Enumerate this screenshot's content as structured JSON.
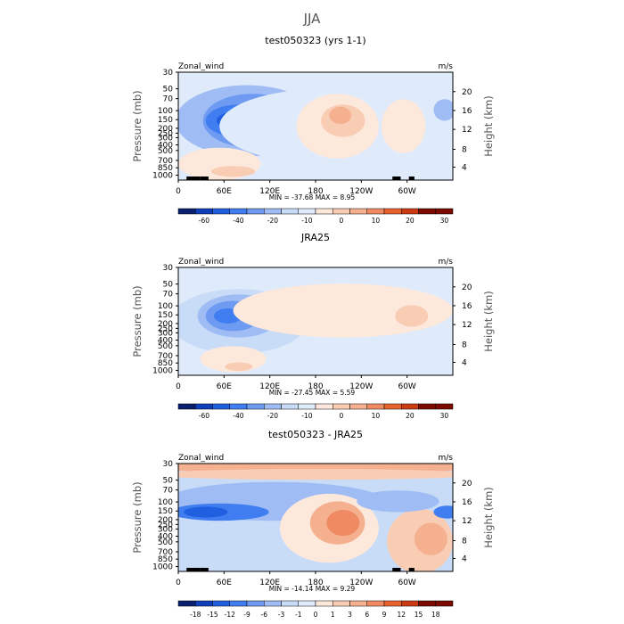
{
  "figure_title": "JJA",
  "colors": {
    "scale": [
      "#08206e",
      "#0f3fb8",
      "#1f5fe0",
      "#3f7df0",
      "#6e9af2",
      "#9fbdf4",
      "#c8dcf8",
      "#dfeafb",
      "#fde8dc",
      "#f9cdb4",
      "#f5b090",
      "#f08a62",
      "#e8602c",
      "#cc3a12",
      "#7a0a00"
    ]
  },
  "chart_data": [
    {
      "type": "contour",
      "title": "test050323 (yrs 1-1)",
      "left_label": "Zonal_wind",
      "right_label": "m/s",
      "ylabel": "Pressure (mb)",
      "ylabel_right": "Height (km)",
      "pressure_ticks": [
        "30",
        "50",
        "70",
        "100",
        "150",
        "200",
        "250",
        "300",
        "400",
        "500",
        "700",
        "850",
        "1000"
      ],
      "height_ticks": [
        "20",
        "16",
        "12",
        "8",
        "4"
      ],
      "x_ticks": [
        "0",
        "60E",
        "120E",
        "180",
        "120W",
        "60W"
      ],
      "min_max": "MIN = -37.68   MAX =    8.95",
      "colorbar_labels": [
        "-60",
        "-40",
        "-20",
        "-10",
        "0",
        "10",
        "20",
        "30"
      ],
      "stats": {
        "min": -37.68,
        "max": 8.95
      }
    },
    {
      "type": "contour",
      "title": "JRA25",
      "left_label": "Zonal_wind",
      "right_label": "m/s",
      "ylabel": "Pressure (mb)",
      "ylabel_right": "Height (km)",
      "pressure_ticks": [
        "30",
        "50",
        "70",
        "100",
        "150",
        "200",
        "250",
        "300",
        "400",
        "500",
        "700",
        "850",
        "1000"
      ],
      "height_ticks": [
        "20",
        "16",
        "12",
        "8",
        "4"
      ],
      "x_ticks": [
        "0",
        "60E",
        "120E",
        "180",
        "120W",
        "60W"
      ],
      "min_max": "MIN = -27.45   MAX =    5.59",
      "colorbar_labels": [
        "-60",
        "-40",
        "-20",
        "-10",
        "0",
        "10",
        "20",
        "30"
      ],
      "stats": {
        "min": -27.45,
        "max": 5.59
      }
    },
    {
      "type": "contour",
      "title": "test050323 - JRA25",
      "left_label": "Zonal_wind",
      "right_label": "m/s",
      "ylabel": "Pressure (mb)",
      "ylabel_right": "Height (km)",
      "pressure_ticks": [
        "30",
        "50",
        "70",
        "100",
        "150",
        "200",
        "250",
        "300",
        "400",
        "500",
        "700",
        "850",
        "1000"
      ],
      "height_ticks": [
        "20",
        "16",
        "12",
        "8",
        "4"
      ],
      "x_ticks": [
        "0",
        "60E",
        "120E",
        "180",
        "120W",
        "60W"
      ],
      "min_max": "MIN = -14.14   MAX =    9.29",
      "colorbar_labels": [
        "-18",
        "-15",
        "-12",
        "-9",
        "-6",
        "-3",
        "-1",
        "0",
        "1",
        "3",
        "6",
        "9",
        "12",
        "15",
        "18"
      ],
      "stats": {
        "min": -14.14,
        "max": 9.29
      }
    }
  ]
}
